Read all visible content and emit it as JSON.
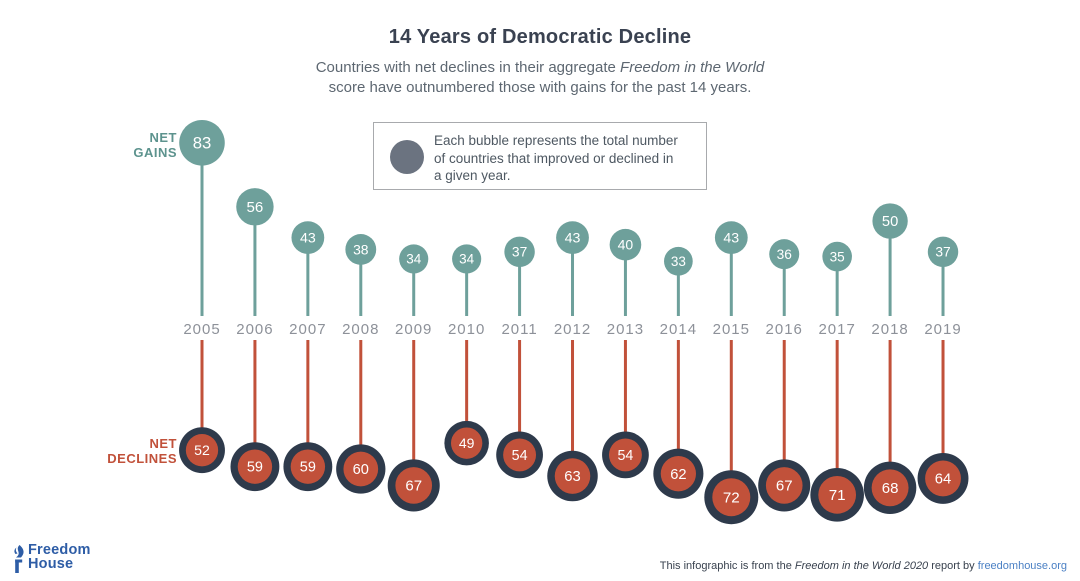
{
  "header": {
    "title": "14 Years of Democratic Decline",
    "subtitle": {
      "line1_regular": "Countries with net declines in their aggregate ",
      "line1_italic": "Freedom in the World",
      "line2": "score have outnumbered those with gains for the past 14 years."
    }
  },
  "legend": {
    "icon": "bubble-icon",
    "lines": [
      "Each bubble represents the total number",
      "of countries that improved or declined in",
      "a given year."
    ]
  },
  "labels": {
    "net_gains": [
      "NET",
      "GAINS"
    ],
    "net_declines": [
      "NET",
      "DECLINES"
    ]
  },
  "chart_data": {
    "type": "bubble-timeline",
    "unit": "countries",
    "categories": [
      "2005",
      "2006",
      "2007",
      "2008",
      "2009",
      "2010",
      "2011",
      "2012",
      "2013",
      "2014",
      "2015",
      "2016",
      "2017",
      "2018",
      "2019"
    ],
    "series": [
      {
        "name": "Net Gains",
        "direction": "up",
        "color": "#6ea09b",
        "values": [
          83,
          56,
          43,
          38,
          34,
          34,
          37,
          43,
          40,
          33,
          43,
          36,
          35,
          50,
          37
        ]
      },
      {
        "name": "Net Declines",
        "direction": "down",
        "color": "#c1513a",
        "ring_color": "#2e3a4b",
        "values": [
          52,
          59,
          59,
          60,
          67,
          49,
          54,
          63,
          54,
          62,
          72,
          67,
          71,
          68,
          64
        ]
      }
    ],
    "title": "14 Years of Democratic Decline",
    "legend_position": "top-center",
    "axis_label_color": "#8d9199",
    "bubble_size": "proportional to value"
  },
  "footer": {
    "logo": {
      "icon": "torch-icon",
      "line1": "Freedom",
      "line2": "House"
    },
    "credit": {
      "prefix": "This infographic is from the ",
      "italic": "Freedom in the World 2020",
      "middle": " report by ",
      "link": "freedomhouse.org"
    }
  },
  "colors": {
    "gains_teal": "#6ea09b",
    "declines_red": "#c1513a",
    "ring_navy": "#2e3a4b",
    "title_navy": "#3a4251",
    "subtitle_gray": "#5d6771",
    "year_gray": "#8d9199",
    "legend_circle_gray": "#6b7380",
    "logo_blue": "#2e5da6",
    "link_blue": "#4b80c4"
  }
}
